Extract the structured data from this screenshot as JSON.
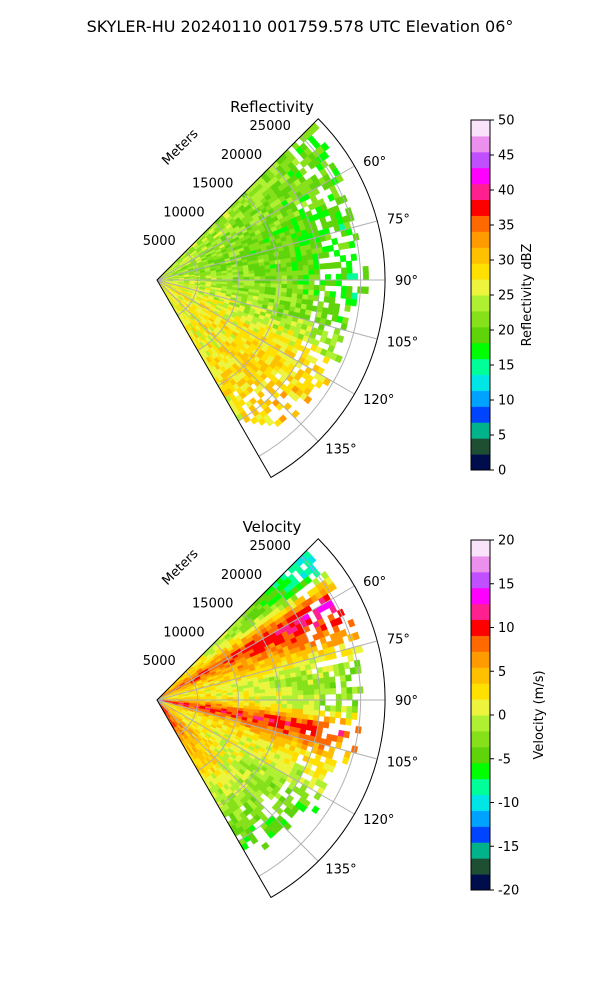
{
  "figure_title": "SKYLER-HU  20240110  001759.578 UTC Elevation 06°",
  "chart_data": [
    {
      "type": "heatmap",
      "projection": "polar-sector",
      "title": "Reflectivity",
      "range_axis_label": "Meters",
      "range_ticks": [
        "5000",
        "10000",
        "15000",
        "20000",
        "25000"
      ],
      "range_tick_values": [
        5000,
        10000,
        15000,
        20000,
        25000
      ],
      "range_max": 28000,
      "azimuth_range_deg": [
        45,
        150
      ],
      "azimuth_ticks": [
        "60°",
        "75°",
        "90°",
        "105°",
        "120°",
        "135°"
      ],
      "azimuth_tick_values": [
        60,
        75,
        90,
        105,
        120,
        135
      ],
      "grid": true,
      "colorbar": {
        "label": "Reflectivity dBZ",
        "range": [
          0,
          50
        ],
        "ticks": [
          "0",
          "5",
          "10",
          "15",
          "20",
          "25",
          "30",
          "35",
          "40",
          "45",
          "50"
        ],
        "tick_values": [
          0,
          5,
          10,
          15,
          20,
          25,
          30,
          35,
          40,
          45,
          50
        ],
        "colors": [
          "#000d4d",
          "#1f4f33",
          "#00b38a",
          "#0044ff",
          "#00a2ff",
          "#00e5e5",
          "#00ff99",
          "#00ff00",
          "#5fd40b",
          "#86e01a",
          "#b0f032",
          "#ecf43e",
          "#ffe000",
          "#ffc000",
          "#ff9a00",
          "#ff6a00",
          "#ff0000",
          "#ff2090",
          "#ff00ff",
          "#c050ff",
          "#ec90ee",
          "#f9e3fa"
        ]
      },
      "field_profile": [
        {
          "azimuth": 45,
          "range_limit": 27000,
          "near": 24,
          "far": 20
        },
        {
          "azimuth": 60,
          "range_limit": 26000,
          "near": 24,
          "far": 19
        },
        {
          "azimuth": 75,
          "range_limit": 25000,
          "near": 23,
          "far": 17
        },
        {
          "azimuth": 90,
          "range_limit": 25500,
          "near": 25,
          "far": 17
        },
        {
          "azimuth": 105,
          "range_limit": 24000,
          "near": 27,
          "far": 19
        },
        {
          "azimuth": 120,
          "range_limit": 24500,
          "near": 27,
          "far": 29
        },
        {
          "azimuth": 135,
          "range_limit": 23000,
          "near": 26,
          "far": 31
        },
        {
          "azimuth": 150,
          "range_limit": 21000,
          "near": 26,
          "far": 28
        }
      ]
    },
    {
      "type": "heatmap",
      "projection": "polar-sector",
      "title": "Velocity",
      "range_axis_label": "Meters",
      "range_ticks": [
        "5000",
        "10000",
        "15000",
        "20000",
        "25000"
      ],
      "range_tick_values": [
        5000,
        10000,
        15000,
        20000,
        25000
      ],
      "range_max": 28000,
      "azimuth_range_deg": [
        45,
        150
      ],
      "azimuth_ticks": [
        "60°",
        "75°",
        "90°",
        "105°",
        "120°",
        "135°"
      ],
      "azimuth_tick_values": [
        60,
        75,
        90,
        105,
        120,
        135
      ],
      "grid": true,
      "colorbar": {
        "label": "Velocity (m/s)",
        "range": [
          -20,
          20
        ],
        "ticks": [
          "-20",
          "-15",
          "-10",
          "-5",
          "0",
          "5",
          "10",
          "15",
          "20"
        ],
        "tick_values": [
          -20,
          -15,
          -10,
          -5,
          0,
          5,
          10,
          15,
          20
        ],
        "colors": [
          "#000d4d",
          "#1f4f33",
          "#00b38a",
          "#0044ff",
          "#00a2ff",
          "#00e5e5",
          "#00ff99",
          "#00ff00",
          "#5fd40b",
          "#86e01a",
          "#b0f032",
          "#ecf43e",
          "#ffe000",
          "#ffc000",
          "#ff9a00",
          "#ff6a00",
          "#ff0000",
          "#ff2090",
          "#ff00ff",
          "#c050ff",
          "#ec90ee",
          "#f9e3fa"
        ]
      },
      "field_profile": [
        {
          "azimuth": 50,
          "range_limit": 27000,
          "near": 6,
          "far": -12
        },
        {
          "azimuth": 60,
          "range_limit": 26000,
          "near": 8,
          "far": 14
        },
        {
          "azimuth": 68,
          "range_limit": 25500,
          "near": 3,
          "far": 10
        },
        {
          "azimuth": 80,
          "range_limit": 25000,
          "near": 2,
          "far": -3
        },
        {
          "azimuth": 92,
          "range_limit": 25000,
          "near": 6,
          "far": -5
        },
        {
          "azimuth": 100,
          "range_limit": 24500,
          "near": 11,
          "far": 10
        },
        {
          "azimuth": 110,
          "range_limit": 24000,
          "near": 2,
          "far": 3
        },
        {
          "azimuth": 125,
          "range_limit": 23000,
          "near": 4,
          "far": -6
        },
        {
          "azimuth": 140,
          "range_limit": 21500,
          "near": 10,
          "far": -11
        }
      ]
    }
  ]
}
